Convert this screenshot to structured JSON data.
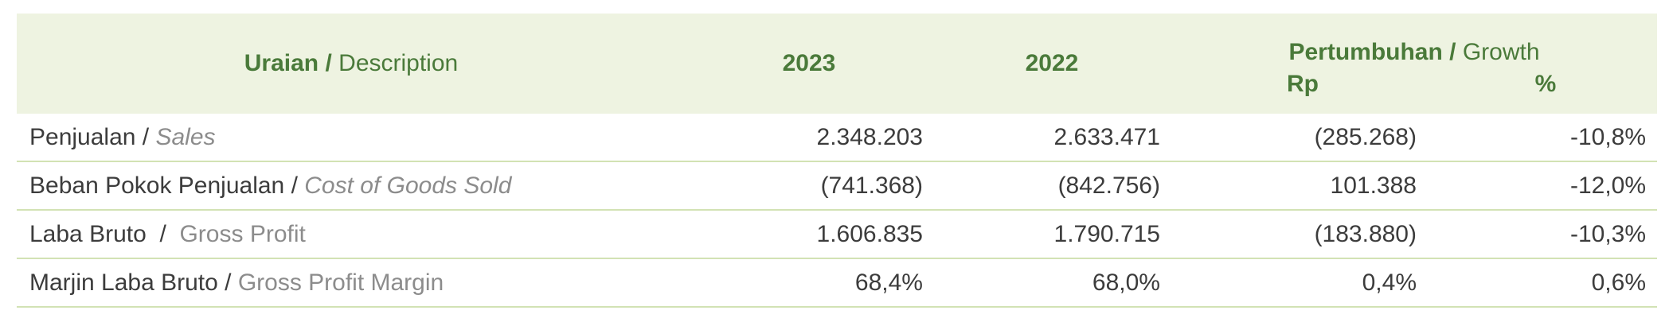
{
  "header": {
    "desc_id": "Uraian",
    "separator": " / ",
    "desc_en": "Description",
    "year1": "2023",
    "year2": "2022",
    "growth_id": "Pertumbuhan",
    "growth_en": "Growth",
    "rp": "Rp",
    "pct": "%"
  },
  "rows": [
    {
      "label_id": "Penjualan",
      "sep": " / ",
      "label_en": "Sales",
      "italic": true,
      "v2023": "2.348.203",
      "v2022": "2.633.471",
      "rp": "(285.268)",
      "pct": "-10,8%"
    },
    {
      "label_id": "Beban Pokok Penjualan",
      "sep": " / ",
      "label_en": "Cost of Goods Sold",
      "italic": true,
      "v2023": "(741.368)",
      "v2022": "(842.756)",
      "rp": "101.388",
      "pct": "-12,0%"
    },
    {
      "label_id": "Laba Bruto",
      "sep": "  /  ",
      "label_en": "Gross Profit",
      "italic": false,
      "v2023": "1.606.835",
      "v2022": "1.790.715",
      "rp": "(183.880)",
      "pct": "-10,3%"
    },
    {
      "label_id": "Marjin Laba Bruto",
      "sep": " / ",
      "label_en": "Gross Profit Margin",
      "italic": false,
      "v2023": "68,4%",
      "v2022": "68,0%",
      "rp": "0,4%",
      "pct": "0,6%"
    }
  ]
}
